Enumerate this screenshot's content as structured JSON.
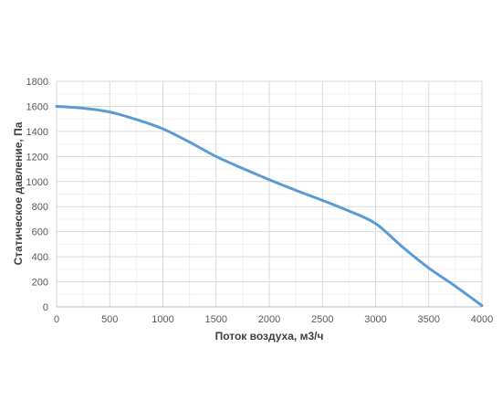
{
  "chart_data": {
    "type": "line",
    "title": "",
    "xlabel": "Поток воздуха, м3/ч",
    "ylabel": "Статическое давление, Па",
    "xlim": [
      0,
      4000
    ],
    "ylim": [
      0,
      1800
    ],
    "x_ticks": [
      0,
      500,
      1000,
      1500,
      2000,
      2500,
      3000,
      3500,
      4000
    ],
    "y_ticks": [
      0,
      200,
      400,
      600,
      800,
      1000,
      1200,
      1400,
      1600,
      1800
    ],
    "grid": true,
    "legend": "none",
    "series": [
      {
        "color": "#5b9bd5",
        "x": [
          0,
          250,
          500,
          750,
          1000,
          1250,
          1500,
          1750,
          2000,
          2250,
          2500,
          2750,
          3000,
          3250,
          3500,
          3750,
          4000
        ],
        "y": [
          1600,
          1585,
          1555,
          1495,
          1420,
          1315,
          1200,
          1105,
          1015,
          930,
          850,
          765,
          665,
          480,
          310,
          165,
          10
        ]
      }
    ]
  }
}
